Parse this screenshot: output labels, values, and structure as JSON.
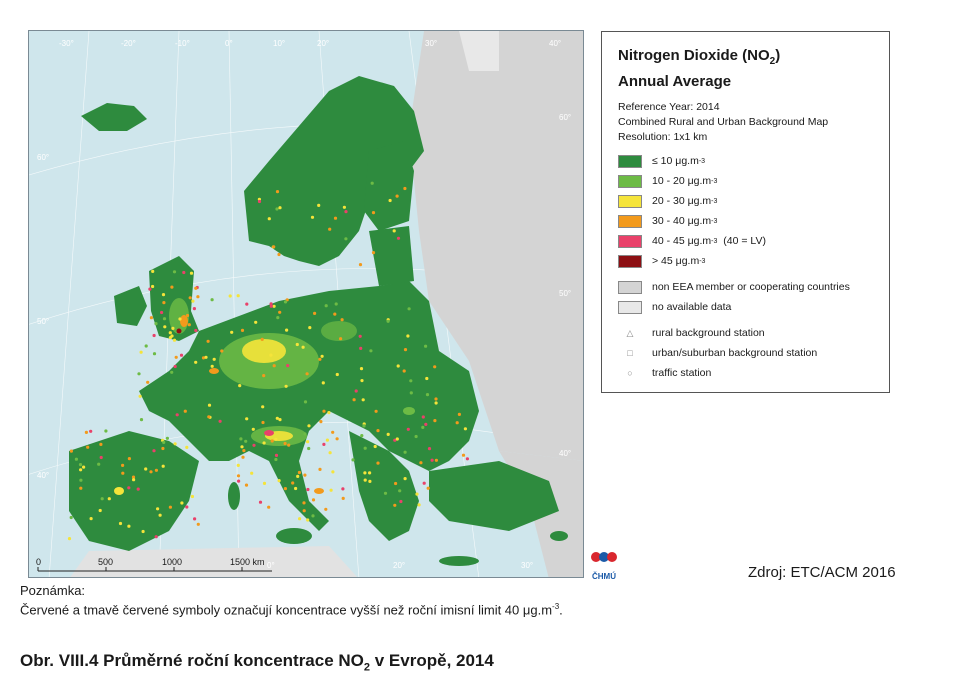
{
  "map": {
    "grid_labels": {
      "lon_top": [
        "-30°",
        "-20°",
        "-10°",
        "0°",
        "10°",
        "20°",
        "30°",
        "40°"
      ],
      "lat_left": [
        "60°",
        "50°",
        "40°"
      ],
      "lat_right": [
        "60°",
        "50°",
        "40°"
      ],
      "lon_bottom": [
        "0°",
        "20°",
        "30°"
      ]
    },
    "scale_bar": {
      "ticks": [
        "0",
        "500",
        "1000",
        "1500 km"
      ]
    },
    "colors": {
      "sea": "#cfe6ec",
      "non_eea": "#d4d4d4",
      "no_data": "#e8e8e8",
      "class_1": "#2e8b3e",
      "class_2": "#6dbb45",
      "class_3": "#f5e43a",
      "class_4": "#f29a1c",
      "class_5": "#e9416a",
      "class_6": "#8c0f13"
    }
  },
  "legend": {
    "title_line1": "Nitrogen Dioxide (NO",
    "title_sub": "2",
    "title_line1_end": ")",
    "title_line2": "Annual Average",
    "reference_year": "Reference Year: 2014",
    "map_type": "Combined Rural and Urban Background Map",
    "resolution": "Resolution: 1x1 km",
    "classes": [
      {
        "label": "≤ 10 μg.m",
        "sup": "-3",
        "extra": "",
        "color": "#2e8b3e"
      },
      {
        "label": "10 - 20 μg.m",
        "sup": "-3",
        "extra": "",
        "color": "#6dbb45"
      },
      {
        "label": "20 - 30 μg.m",
        "sup": "-3",
        "extra": "",
        "color": "#f5e43a"
      },
      {
        "label": "30 - 40 μg.m",
        "sup": "-3",
        "extra": "",
        "color": "#f29a1c"
      },
      {
        "label": "40 - 45 μg.m",
        "sup": "-3",
        "extra": "  (40 = LV)",
        "color": "#e9416a"
      },
      {
        "label": "> 45 μg.m",
        "sup": "-3",
        "extra": "",
        "color": "#8c0f13"
      }
    ],
    "other": [
      {
        "label": "non EEA member or cooperating countries",
        "color": "#d4d4d4"
      },
      {
        "label": "no available data",
        "color": "#e8e8e8"
      }
    ],
    "stations": [
      {
        "label": "rural background station",
        "symbol": "△"
      },
      {
        "label": "urban/suburban background station",
        "symbol": "□"
      },
      {
        "label": "traffic station",
        "symbol": "○"
      }
    ]
  },
  "logo_text": "ČHMÚ",
  "source": "Zdroj: ETC/ACM 2016",
  "note": {
    "heading": "Poznámka:",
    "text": "Červené a tmavě červené symboly označují koncentrace vyšší než roční imisní limit 40 μg.m",
    "sup": "-3",
    "end": "."
  },
  "figure_title": {
    "prefix": "Obr. VIII.4  Průměrné roční koncentrace NO",
    "sub": "2",
    "suffix": " v Evropě, 2014"
  }
}
